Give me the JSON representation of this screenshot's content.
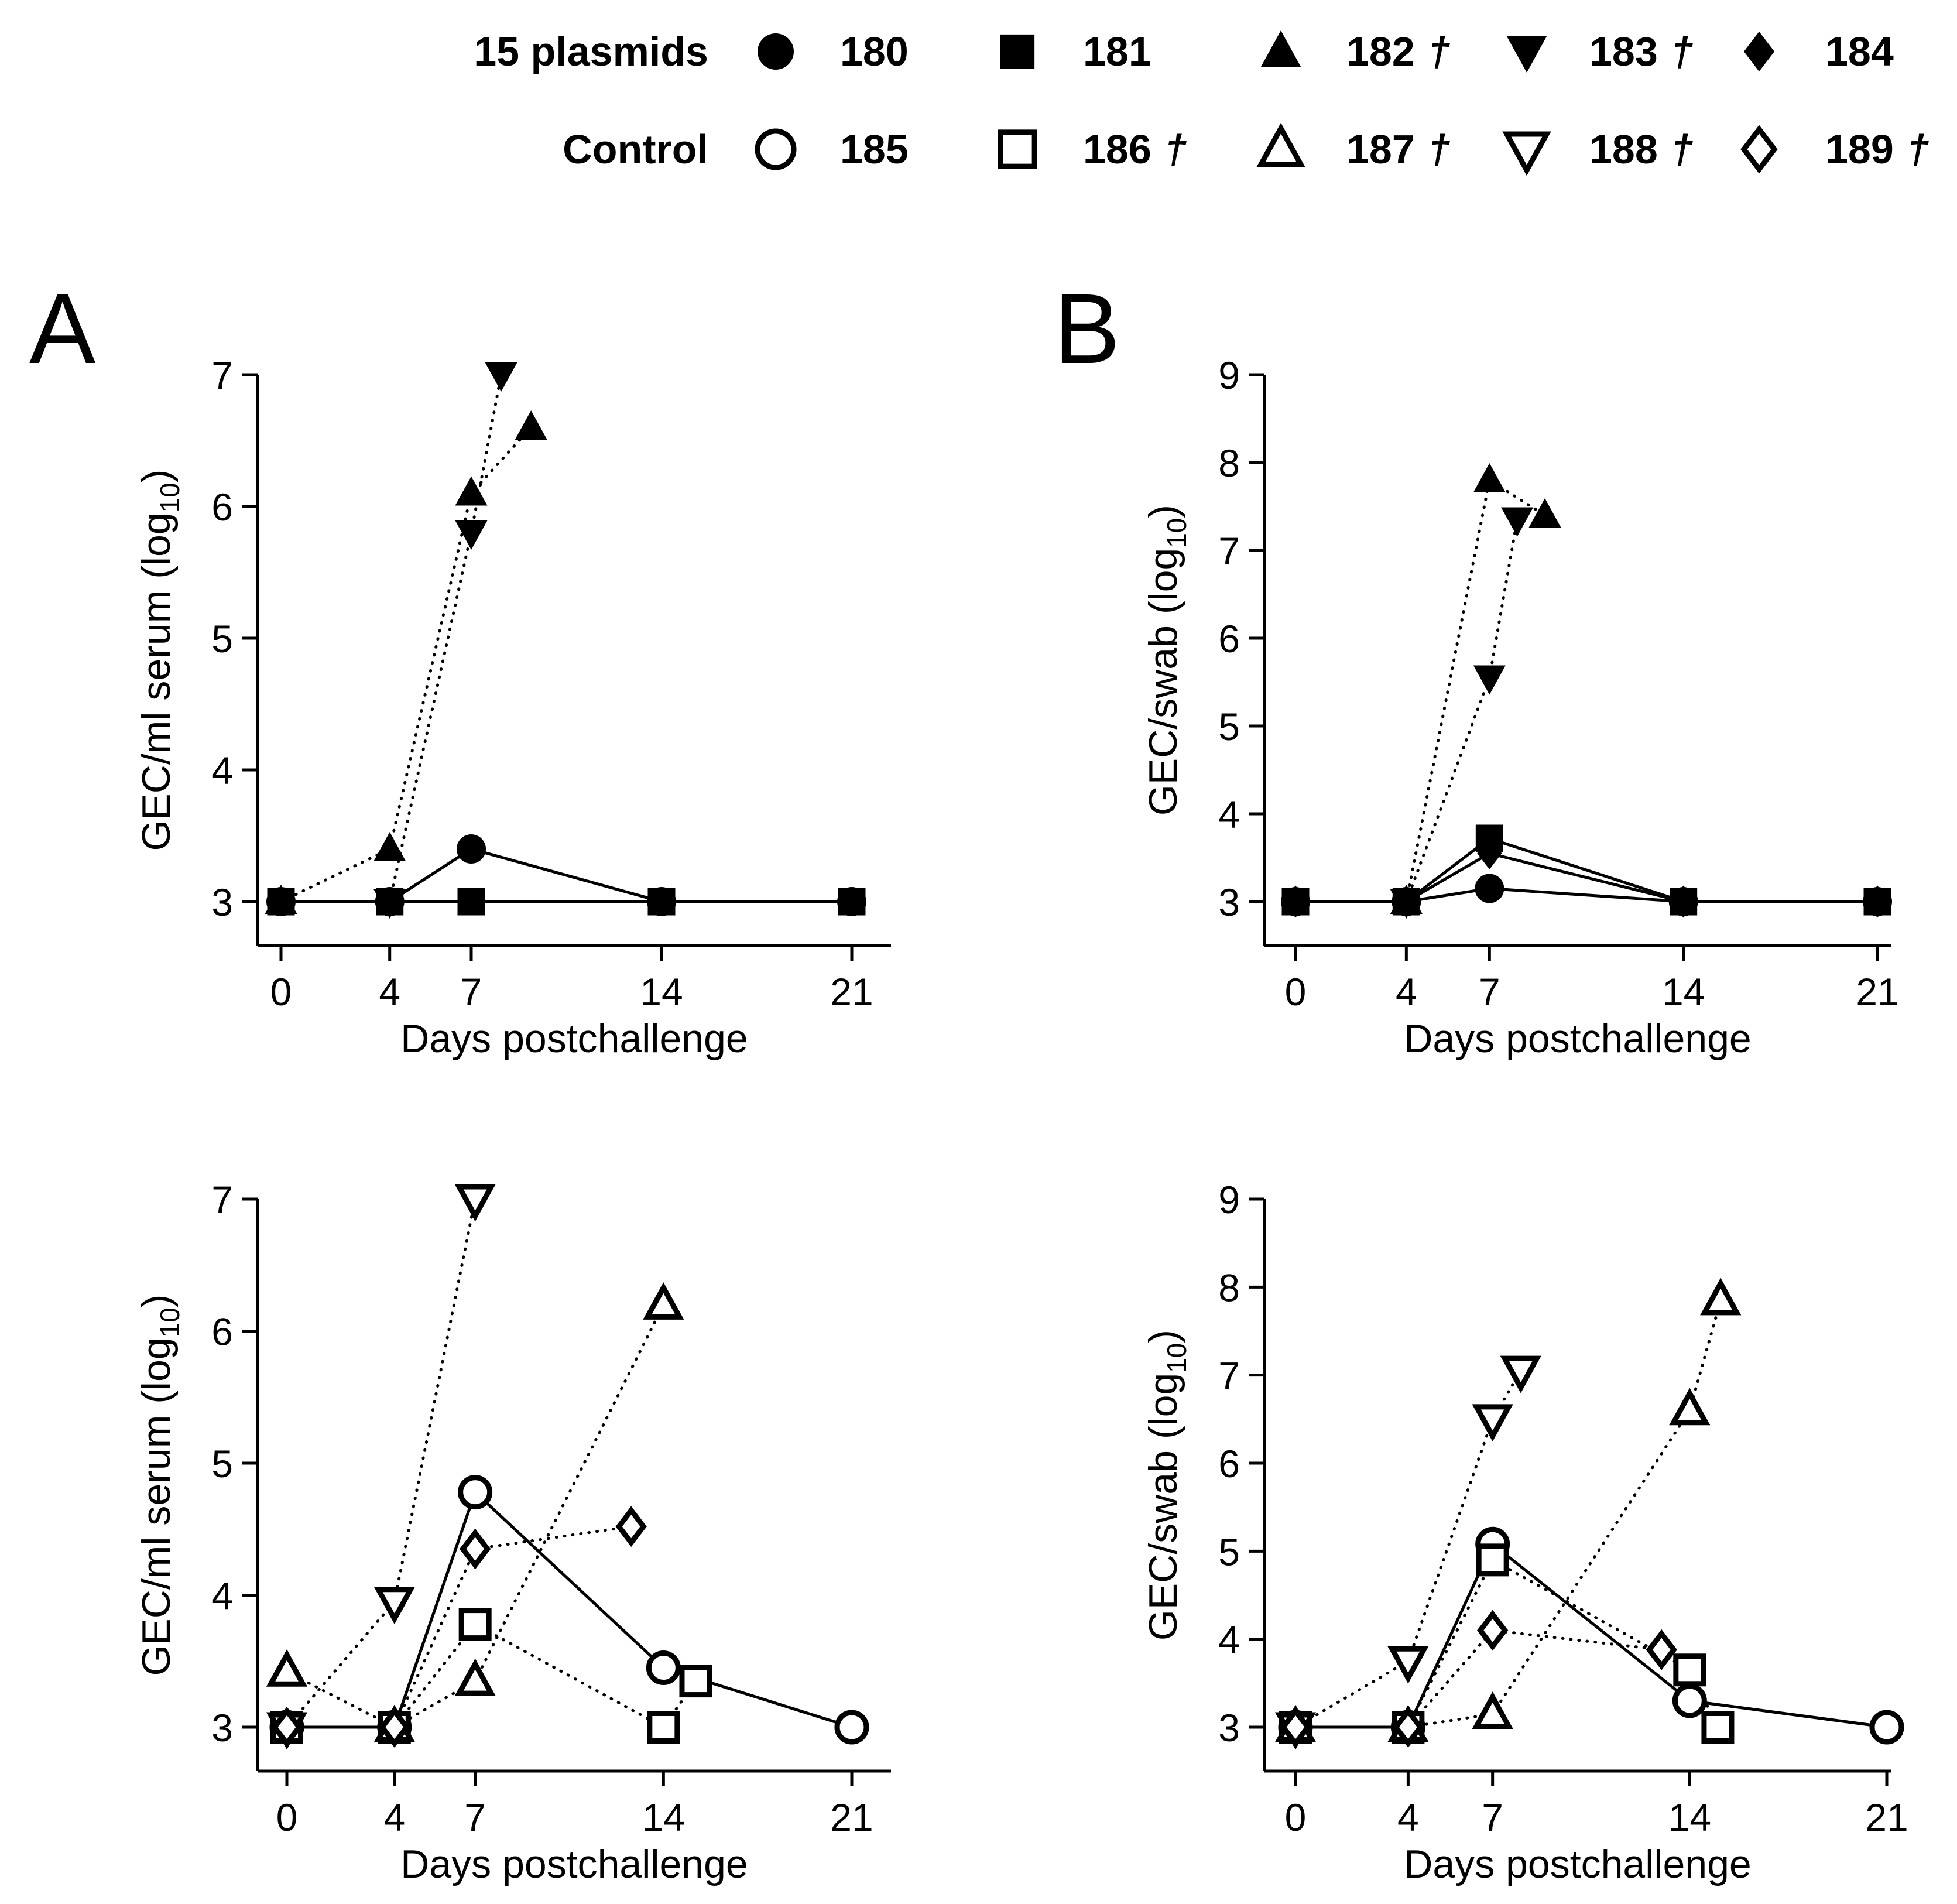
{
  "legend": {
    "rows": [
      {
        "group": "15 plasmids",
        "filled": true,
        "entries": [
          {
            "id": "180",
            "marker": "circle",
            "dagger": false
          },
          {
            "id": "181",
            "marker": "square",
            "dagger": false
          },
          {
            "id": "182",
            "marker": "triangle-up",
            "dagger": true
          },
          {
            "id": "183",
            "marker": "triangle-down",
            "dagger": true
          },
          {
            "id": "184",
            "marker": "diamond",
            "dagger": false
          }
        ]
      },
      {
        "group": "Control",
        "filled": false,
        "entries": [
          {
            "id": "185",
            "marker": "circle",
            "dagger": false
          },
          {
            "id": "186",
            "marker": "square",
            "dagger": true
          },
          {
            "id": "187",
            "marker": "triangle-up",
            "dagger": true
          },
          {
            "id": "188",
            "marker": "triangle-down",
            "dagger": true
          },
          {
            "id": "189",
            "marker": "diamond",
            "dagger": true
          }
        ]
      }
    ],
    "dagger_symbol": "†"
  },
  "panel_labels": [
    "A",
    "B"
  ],
  "chart_data": [
    {
      "id": "A-top",
      "panel": "A",
      "type": "line",
      "xlabel": "Days postchallenge",
      "ylabel_main": "GEC/ml serum (log",
      "ylabel_sub": "10",
      "ylabel_end": ")",
      "xlim": [
        -1.2,
        22.5
      ],
      "ylim": [
        2.6,
        7.0
      ],
      "xticks": [
        0,
        4,
        7,
        14,
        21
      ],
      "yticks": [
        3,
        4,
        5,
        6,
        7
      ],
      "series": [
        {
          "id": "180",
          "marker": "circle",
          "filled": true,
          "line": "solid",
          "x": [
            0,
            4,
            7,
            14,
            21
          ],
          "y": [
            3,
            3,
            3.4,
            3,
            3
          ]
        },
        {
          "id": "181",
          "marker": "square",
          "filled": true,
          "line": "solid",
          "x": [
            0,
            4,
            7,
            14,
            21
          ],
          "y": [
            3,
            3,
            3,
            3,
            3
          ]
        },
        {
          "id": "182",
          "marker": "triangle-up",
          "filled": true,
          "line": "dotted",
          "x": [
            0,
            4,
            7,
            9.2
          ],
          "y": [
            3,
            3.4,
            6.1,
            6.6
          ]
        },
        {
          "id": "183",
          "marker": "triangle-down",
          "filled": true,
          "line": "dotted",
          "x": [
            4,
            7,
            8.1
          ],
          "y": [
            3,
            5.8,
            7.0
          ]
        }
      ]
    },
    {
      "id": "B-top",
      "panel": "B",
      "type": "line",
      "xlabel": "Days postchallenge",
      "ylabel_main": "GEC/swab (log",
      "ylabel_sub": "10",
      "ylabel_end": ")",
      "xlim": [
        -1.0,
        22.0
      ],
      "ylim": [
        2.5,
        9.0
      ],
      "xticks": [
        0,
        4,
        7,
        14,
        21
      ],
      "yticks": [
        3,
        4,
        5,
        6,
        7,
        8,
        9
      ],
      "series": [
        {
          "id": "180",
          "marker": "circle",
          "filled": true,
          "line": "solid",
          "x": [
            0,
            4,
            7,
            14,
            21
          ],
          "y": [
            3,
            3,
            3.15,
            3,
            3
          ]
        },
        {
          "id": "184",
          "marker": "diamond",
          "filled": true,
          "line": "solid",
          "x": [
            0,
            4,
            7,
            14,
            21
          ],
          "y": [
            3,
            3,
            3.55,
            3,
            3
          ]
        },
        {
          "id": "181",
          "marker": "square",
          "filled": true,
          "line": "solid",
          "x": [
            0,
            4,
            7,
            14,
            21
          ],
          "y": [
            3,
            3,
            3.72,
            3,
            3
          ]
        },
        {
          "id": "182",
          "marker": "triangle-up",
          "filled": true,
          "line": "dotted",
          "x": [
            4,
            7,
            9.0
          ],
          "y": [
            3,
            7.8,
            7.4
          ]
        },
        {
          "id": "183",
          "marker": "triangle-down",
          "filled": true,
          "line": "dotted",
          "x": [
            4,
            7,
            8.0
          ],
          "y": [
            3,
            5.55,
            7.35
          ]
        }
      ]
    },
    {
      "id": "A-bottom",
      "panel": "A",
      "type": "line",
      "xlabel": "Days postchallenge",
      "ylabel_main": "GEC/ml serum (log",
      "ylabel_sub": "10",
      "ylabel_end": ")",
      "xlim": [
        -1.2,
        22.5
      ],
      "ylim": [
        2.6,
        7.0
      ],
      "xticks": [
        0,
        4,
        7,
        14,
        21
      ],
      "yticks": [
        3,
        4,
        5,
        6,
        7
      ],
      "series": [
        {
          "id": "185",
          "marker": "circle",
          "filled": false,
          "line": "solid",
          "x": [
            0,
            4,
            7,
            14,
            21
          ],
          "y": [
            3,
            3,
            4.78,
            3.45,
            3
          ]
        },
        {
          "id": "186",
          "marker": "square",
          "filled": false,
          "line": "dotted",
          "x": [
            0,
            4,
            7,
            14,
            15.2
          ],
          "y": [
            3,
            3,
            3.78,
            3,
            3.35
          ]
        },
        {
          "id": "187",
          "marker": "triangle-up",
          "filled": false,
          "line": "dotted",
          "x": [
            0,
            4,
            7,
            14
          ],
          "y": [
            3.42,
            3,
            3.35,
            6.2
          ]
        },
        {
          "id": "188",
          "marker": "triangle-down",
          "filled": false,
          "line": "dotted",
          "x": [
            0,
            4,
            7
          ],
          "y": [
            3,
            3.95,
            7.0
          ]
        },
        {
          "id": "189",
          "marker": "diamond",
          "filled": false,
          "line": "dotted",
          "x": [
            0,
            4,
            7,
            12.8
          ],
          "y": [
            3,
            3,
            4.35,
            4.52
          ]
        }
      ]
    },
    {
      "id": "B-bottom",
      "panel": "B",
      "type": "line",
      "xlabel": "Days postchallenge",
      "ylabel_main": "GEC/swab (log",
      "ylabel_sub": "10",
      "ylabel_end": ")",
      "xlim": [
        -1.0,
        22.0
      ],
      "ylim": [
        2.5,
        9.0
      ],
      "xticks": [
        0,
        4,
        7,
        14,
        21
      ],
      "yticks": [
        3,
        4,
        5,
        6,
        7,
        8,
        9
      ],
      "series": [
        {
          "id": "185",
          "marker": "circle",
          "filled": false,
          "line": "solid",
          "x": [
            0,
            4,
            7,
            14,
            21
          ],
          "y": [
            3,
            3,
            5.08,
            3.3,
            3
          ]
        },
        {
          "id": "186",
          "marker": "square",
          "filled": false,
          "line": "dotted",
          "x": [
            0,
            4,
            7,
            14,
            15.0
          ],
          "y": [
            3,
            3,
            4.9,
            3.65,
            3
          ]
        },
        {
          "id": "187",
          "marker": "triangle-up",
          "filled": false,
          "line": "dotted",
          "x": [
            0,
            4,
            7,
            14,
            15.1
          ],
          "y": [
            3,
            3,
            3.15,
            6.6,
            7.85
          ]
        },
        {
          "id": "188",
          "marker": "triangle-down",
          "filled": false,
          "line": "dotted",
          "x": [
            0,
            4,
            7,
            8.0
          ],
          "y": [
            3,
            3.75,
            6.5,
            7.05
          ]
        },
        {
          "id": "189",
          "marker": "diamond",
          "filled": false,
          "line": "dotted",
          "x": [
            0,
            4,
            7,
            13.0
          ],
          "y": [
            3,
            3,
            4.1,
            3.88
          ]
        }
      ]
    }
  ]
}
